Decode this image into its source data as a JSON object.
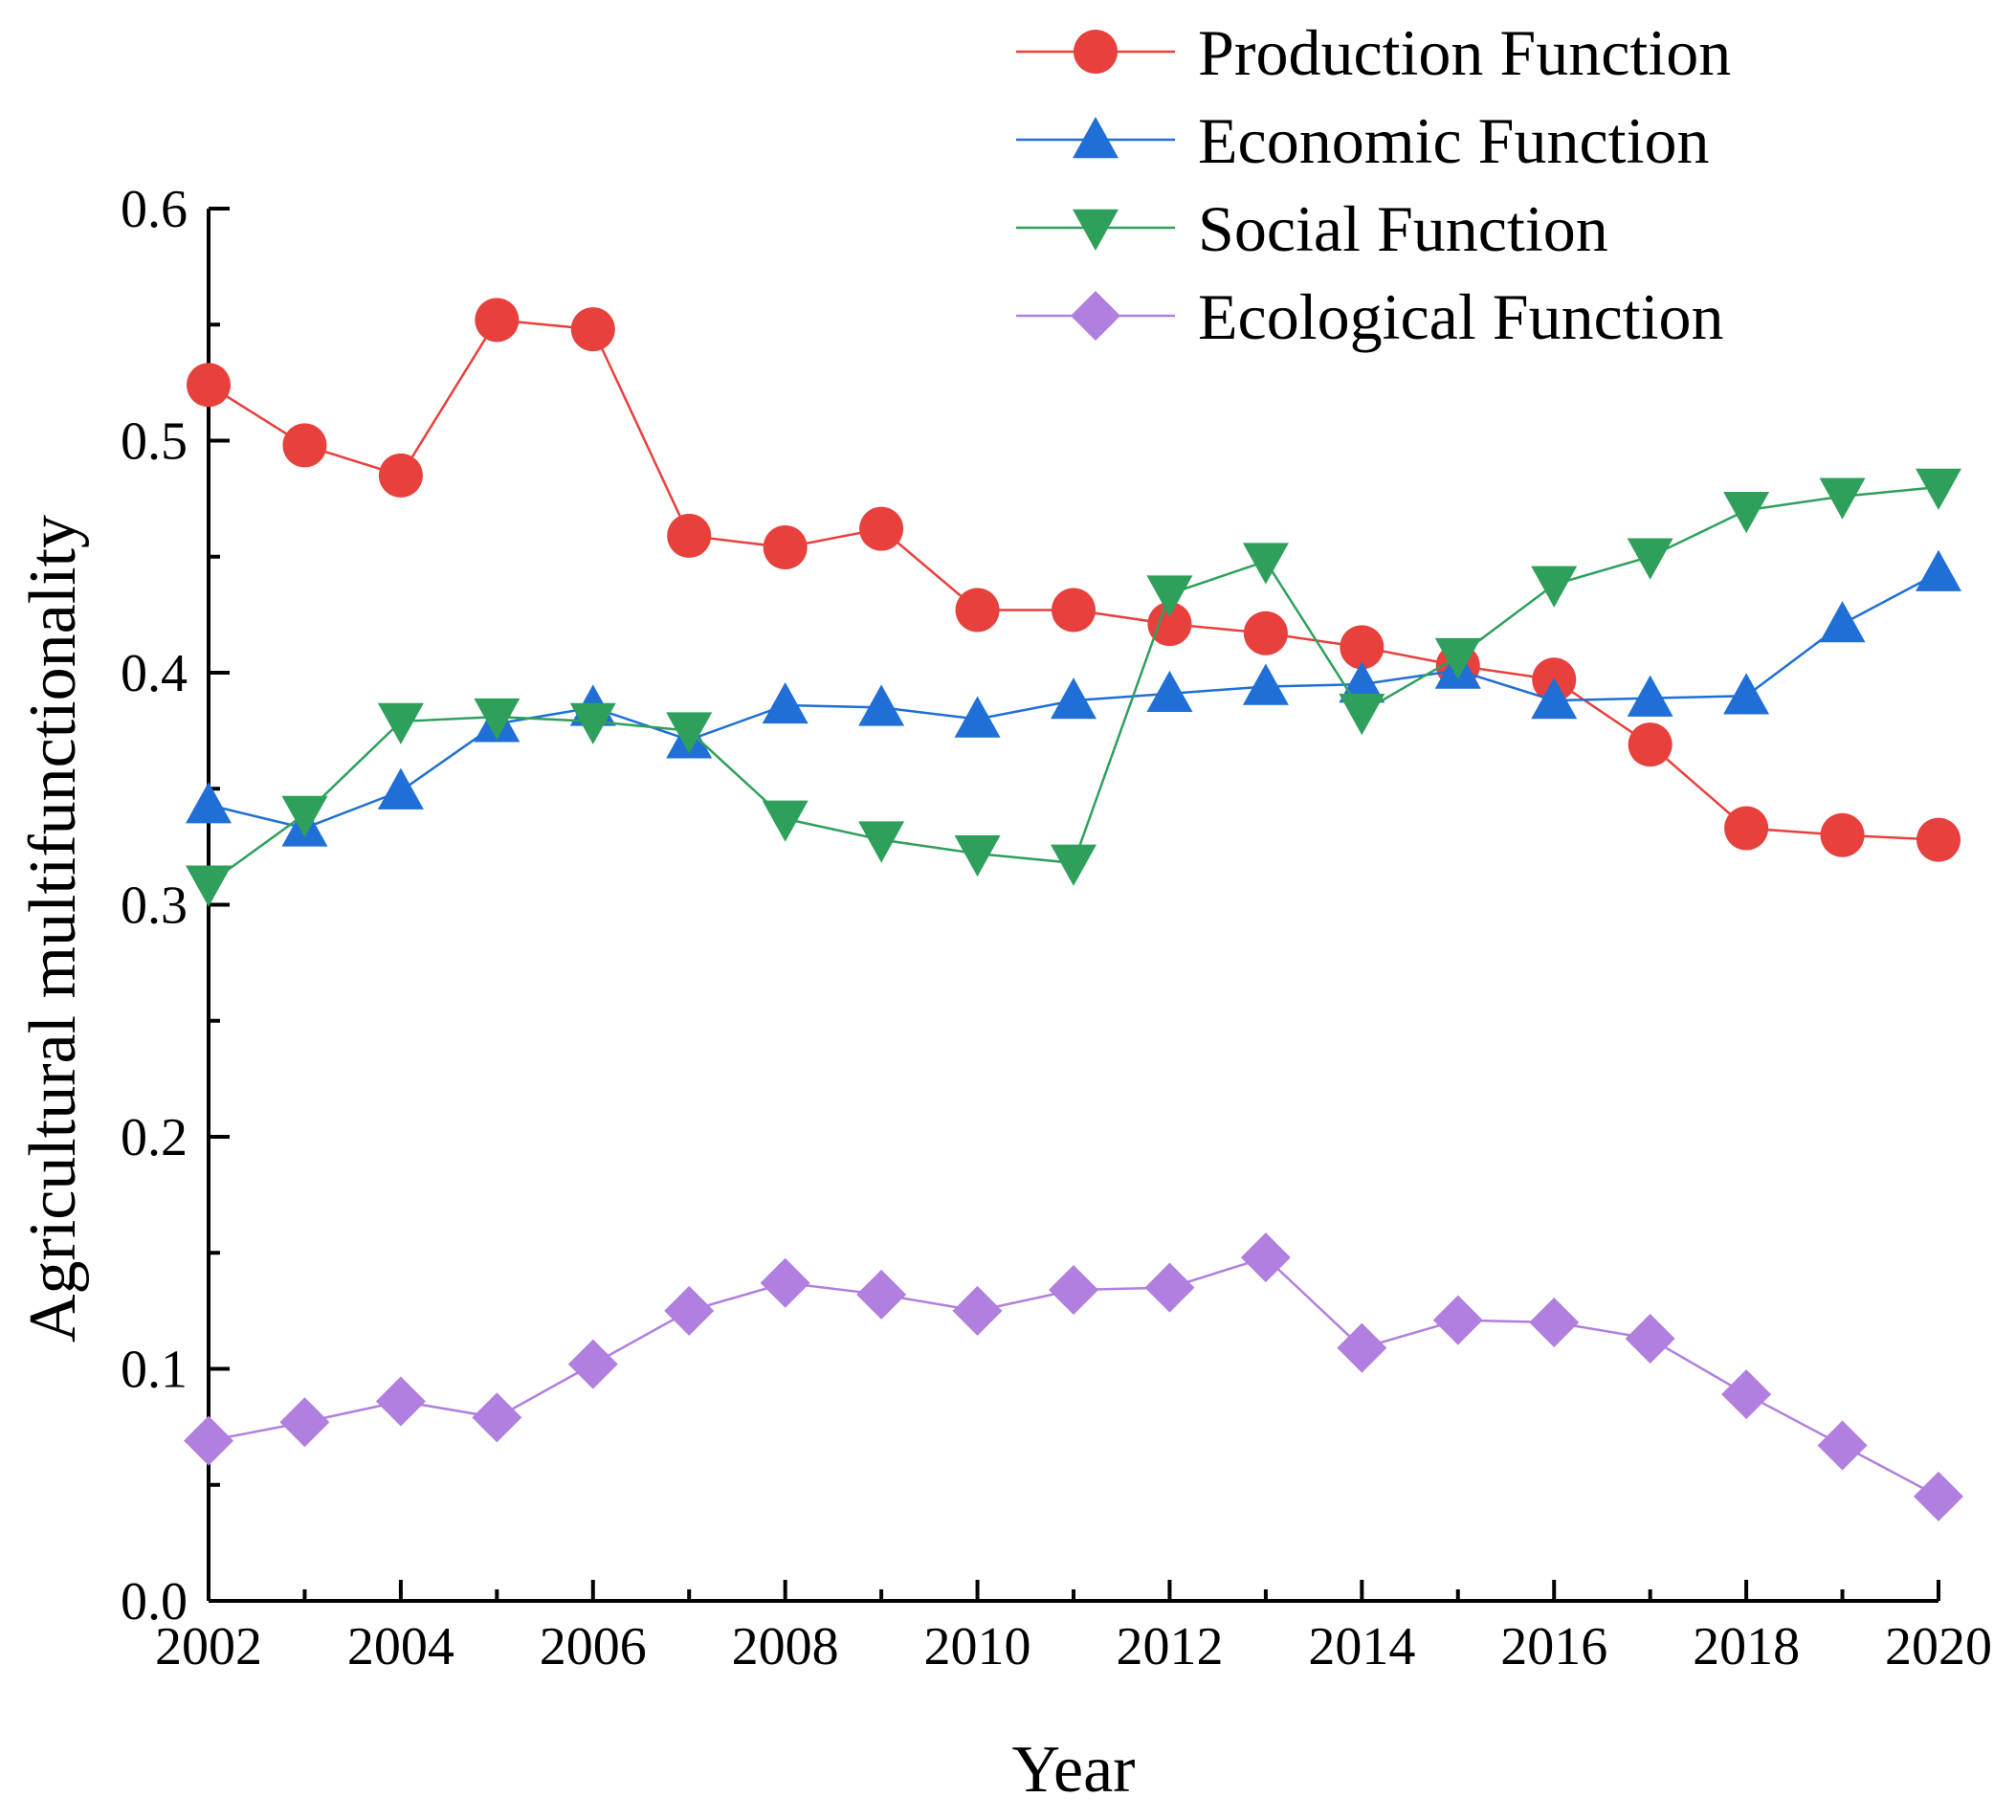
{
  "chart_data": {
    "type": "line",
    "xlabel": "Year",
    "ylabel": "Agricultural multifunctionality",
    "xlim": [
      2002,
      2020
    ],
    "ylim": [
      0.0,
      0.6
    ],
    "x_ticks": [
      "2002",
      "2004",
      "2006",
      "2008",
      "2010",
      "2012",
      "2014",
      "2016",
      "2018",
      "2020"
    ],
    "y_ticks": [
      "0.0",
      "0.1",
      "0.2",
      "0.3",
      "0.4",
      "0.5",
      "0.6"
    ],
    "grid": false,
    "legend_position": "top-right",
    "x": [
      2002,
      2003,
      2004,
      2005,
      2006,
      2007,
      2008,
      2009,
      2010,
      2011,
      2012,
      2013,
      2014,
      2015,
      2016,
      2017,
      2018,
      2019,
      2020
    ],
    "series": [
      {
        "name": "Production Function",
        "color": "#e8403c",
        "marker": "circle",
        "values": [
          0.524,
          0.498,
          0.485,
          0.552,
          0.548,
          0.459,
          0.454,
          0.462,
          0.427,
          0.427,
          0.421,
          0.417,
          0.411,
          0.403,
          0.397,
          0.369,
          0.333,
          0.33,
          0.328
        ]
      },
      {
        "name": "Economic Function",
        "color": "#1f6fd6",
        "marker": "triangle-up",
        "values": [
          0.343,
          0.333,
          0.349,
          0.378,
          0.385,
          0.371,
          0.386,
          0.385,
          0.38,
          0.388,
          0.391,
          0.394,
          0.395,
          0.401,
          0.388,
          0.389,
          0.39,
          0.421,
          0.443
        ]
      },
      {
        "name": "Social Function",
        "color": "#2ea05c",
        "marker": "triangle-down",
        "values": [
          0.309,
          0.339,
          0.379,
          0.381,
          0.379,
          0.375,
          0.337,
          0.328,
          0.322,
          0.318,
          0.434,
          0.448,
          0.383,
          0.407,
          0.438,
          0.45,
          0.47,
          0.476,
          0.48
        ]
      },
      {
        "name": "Ecological Function",
        "color": "#b07fe0",
        "marker": "diamond",
        "values": [
          0.069,
          0.077,
          0.086,
          0.079,
          0.102,
          0.125,
          0.137,
          0.132,
          0.125,
          0.134,
          0.135,
          0.148,
          0.109,
          0.121,
          0.12,
          0.113,
          0.089,
          0.067,
          0.045
        ]
      }
    ]
  }
}
